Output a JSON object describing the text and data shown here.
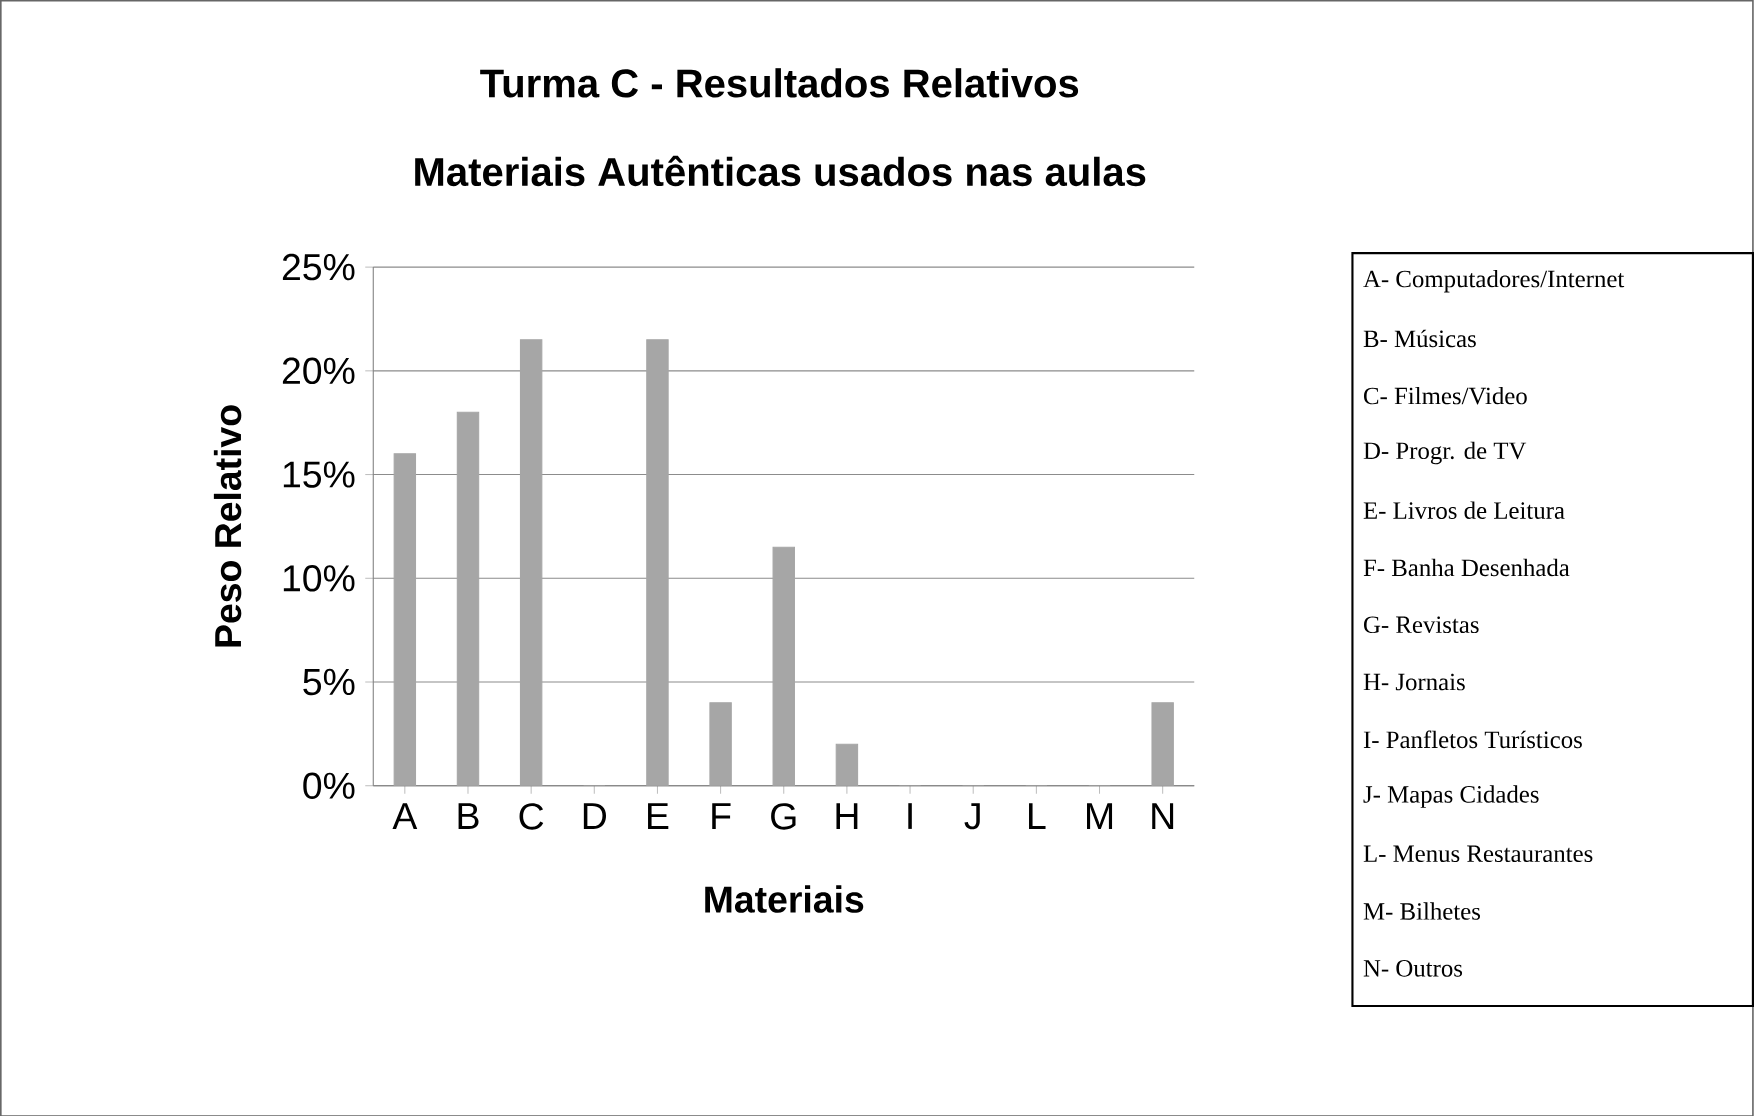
{
  "chart_data": {
    "type": "bar",
    "title": "Turma C - Resultados Relativos",
    "subtitle": "Materiais Autênticas usados nas aulas",
    "xlabel": "Materiais",
    "ylabel": "Peso Relativo",
    "categories": [
      "A",
      "B",
      "C",
      "D",
      "E",
      "F",
      "G",
      "H",
      "I",
      "J",
      "L",
      "M",
      "N"
    ],
    "values": [
      16,
      18,
      21.5,
      0,
      21.5,
      4,
      11.5,
      2,
      0,
      0,
      0,
      0,
      4
    ],
    "color": "#a6a6a6",
    "ylim": [
      0,
      25
    ],
    "yticks": [
      {
        "value": 0,
        "label": "0%"
      },
      {
        "value": 5,
        "label": "5%"
      },
      {
        "value": 10,
        "label": "10%"
      },
      {
        "value": 15,
        "label": "15%"
      },
      {
        "value": 20,
        "label": "20%"
      },
      {
        "value": 25,
        "label": "25%"
      }
    ],
    "grid": "y",
    "annotations": [
      "A- Computadores/Internet",
      "B- Músicas",
      "C- Filmes/Video",
      "D- Progr. de TV",
      "E- Livros de Leitura",
      "F- Banha Desenhada",
      "G- Revistas",
      "H- Jornais",
      "I- Panfletos Turísticos",
      "J- Mapas Cidades",
      "L- Menus Restaurantes",
      "M- Bilhetes",
      "N- Outros"
    ]
  }
}
